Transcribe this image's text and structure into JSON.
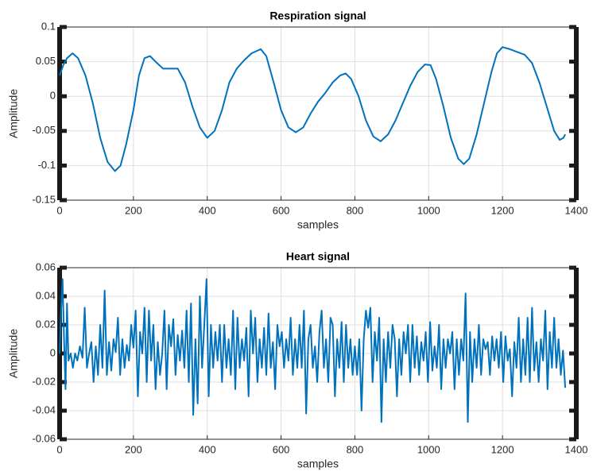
{
  "chart_data": [
    {
      "type": "line",
      "title": "Respiration signal",
      "xlabel": "samples",
      "ylabel": "Amplitude",
      "color": "#0072bd",
      "grid": true,
      "xlim": [
        0,
        1400
      ],
      "xticks": [
        0,
        200,
        400,
        600,
        800,
        1000,
        1200,
        1400
      ],
      "ylim": [
        -0.15,
        0.1
      ],
      "yticks": [
        -0.15,
        -0.1,
        -0.05,
        0,
        0.05,
        0.1
      ],
      "x": [
        0,
        10,
        20,
        35,
        50,
        70,
        90,
        110,
        130,
        150,
        165,
        180,
        200,
        215,
        230,
        245,
        260,
        280,
        300,
        320,
        340,
        360,
        380,
        400,
        420,
        440,
        460,
        480,
        500,
        520,
        545,
        560,
        580,
        600,
        620,
        640,
        660,
        680,
        700,
        720,
        740,
        760,
        775,
        790,
        810,
        830,
        850,
        870,
        890,
        910,
        930,
        950,
        970,
        990,
        1005,
        1020,
        1040,
        1060,
        1080,
        1095,
        1110,
        1130,
        1150,
        1170,
        1185,
        1200,
        1220,
        1240,
        1260,
        1280,
        1300,
        1320,
        1340,
        1355,
        1365,
        1370
      ],
      "values": [
        0.03,
        0.045,
        0.055,
        0.062,
        0.055,
        0.03,
        -0.01,
        -0.06,
        -0.095,
        -0.108,
        -0.1,
        -0.07,
        -0.02,
        0.03,
        0.055,
        0.058,
        0.05,
        0.04,
        0.04,
        0.04,
        0.02,
        -0.015,
        -0.045,
        -0.06,
        -0.05,
        -0.02,
        0.02,
        0.04,
        0.052,
        0.062,
        0.068,
        0.058,
        0.02,
        -0.02,
        -0.045,
        -0.052,
        -0.045,
        -0.025,
        -0.008,
        0.005,
        0.02,
        0.03,
        0.033,
        0.025,
        0.0,
        -0.035,
        -0.058,
        -0.065,
        -0.055,
        -0.035,
        -0.01,
        0.015,
        0.035,
        0.046,
        0.045,
        0.025,
        -0.015,
        -0.06,
        -0.09,
        -0.098,
        -0.09,
        -0.055,
        -0.01,
        0.035,
        0.062,
        0.071,
        0.068,
        0.064,
        0.06,
        0.048,
        0.02,
        -0.015,
        -0.05,
        -0.063,
        -0.06,
        -0.055
      ]
    },
    {
      "type": "line",
      "title": "Heart signal",
      "xlabel": "samples",
      "ylabel": "Amplitude",
      "color": "#0072bd",
      "grid": true,
      "xlim": [
        0,
        1400
      ],
      "xticks": [
        0,
        200,
        400,
        600,
        800,
        1000,
        1200,
        1400
      ],
      "ylim": [
        -0.06,
        0.06
      ],
      "yticks": [
        -0.06,
        -0.04,
        -0.02,
        0,
        0.02,
        0.04,
        0.06
      ],
      "x": [
        0,
        4,
        8,
        12,
        16,
        20,
        24,
        30,
        36,
        42,
        48,
        55,
        62,
        68,
        74,
        80,
        86,
        92,
        98,
        104,
        110,
        116,
        122,
        128,
        134,
        140,
        146,
        152,
        158,
        164,
        170,
        176,
        182,
        188,
        194,
        200,
        206,
        212,
        218,
        224,
        230,
        236,
        242,
        248,
        254,
        260,
        266,
        272,
        278,
        284,
        290,
        296,
        302,
        308,
        314,
        320,
        326,
        332,
        338,
        344,
        350,
        356,
        362,
        368,
        374,
        380,
        386,
        392,
        398,
        404,
        410,
        416,
        422,
        428,
        434,
        440,
        446,
        452,
        458,
        464,
        470,
        476,
        482,
        488,
        494,
        500,
        506,
        512,
        518,
        524,
        530,
        536,
        542,
        548,
        554,
        560,
        566,
        572,
        578,
        584,
        590,
        596,
        602,
        608,
        614,
        620,
        626,
        632,
        638,
        644,
        650,
        656,
        662,
        668,
        674,
        680,
        686,
        692,
        698,
        704,
        710,
        716,
        722,
        728,
        734,
        740,
        746,
        752,
        758,
        764,
        770,
        776,
        782,
        788,
        794,
        800,
        806,
        812,
        818,
        824,
        830,
        836,
        842,
        848,
        854,
        860,
        866,
        872,
        878,
        884,
        890,
        896,
        902,
        908,
        914,
        920,
        926,
        932,
        938,
        944,
        950,
        956,
        962,
        968,
        974,
        980,
        986,
        992,
        998,
        1004,
        1010,
        1016,
        1022,
        1028,
        1034,
        1040,
        1046,
        1052,
        1058,
        1064,
        1070,
        1076,
        1082,
        1088,
        1094,
        1100,
        1106,
        1112,
        1118,
        1124,
        1130,
        1136,
        1142,
        1148,
        1154,
        1160,
        1166,
        1172,
        1178,
        1184,
        1190,
        1196,
        1202,
        1208,
        1214,
        1220,
        1226,
        1232,
        1238,
        1244,
        1250,
        1256,
        1262,
        1268,
        1274,
        1280,
        1286,
        1292,
        1298,
        1304,
        1310,
        1316,
        1322,
        1328,
        1334,
        1340,
        1346,
        1352,
        1358,
        1364,
        1370
      ],
      "values": [
        0,
        0.03,
        0.052,
        0.01,
        -0.025,
        0.035,
        -0.005,
        0,
        -0.01,
        0,
        -0.005,
        0.005,
        -0.003,
        0.032,
        -0.01,
        0,
        0.008,
        -0.02,
        0.005,
        -0.015,
        0.02,
        -0.01,
        0.044,
        -0.015,
        0.008,
        -0.012,
        0.01,
        0.001,
        0.025,
        -0.015,
        0.01,
        -0.01,
        0.006,
        -0.005,
        0.02,
        0.004,
        0.03,
        -0.03,
        0.015,
        0,
        0.032,
        -0.02,
        0.03,
        -0.005,
        0.02,
        -0.025,
        0.008,
        -0.015,
        0,
        0.03,
        -0.025,
        0.02,
        0.005,
        0.024,
        -0.015,
        0.013,
        -0.005,
        0.016,
        -0.01,
        0.03,
        -0.02,
        0.035,
        -0.043,
        0.01,
        -0.035,
        0.04,
        -0.01,
        0.02,
        0.052,
        -0.03,
        0.02,
        -0.01,
        0.015,
        -0.005,
        0.02,
        -0.02,
        0.02,
        -0.01,
        0.01,
        -0.015,
        0.03,
        -0.025,
        0.025,
        -0.01,
        0.01,
        -0.005,
        0.018,
        -0.03,
        0.03,
        0,
        0.025,
        -0.02,
        0.01,
        -0.01,
        0.018,
        -0.015,
        0.028,
        -0.01,
        0.008,
        -0.025,
        0.02,
        0.005,
        0.015,
        -0.01,
        0.01,
        -0.005,
        0.025,
        -0.015,
        0.01,
        -0.01,
        0.02,
        -0.01,
        0.03,
        -0.042,
        0.01,
        0.02,
        -0.01,
        0.005,
        -0.02,
        0.015,
        0.03,
        -0.01,
        0.01,
        -0.02,
        0.025,
        0.02,
        -0.03,
        0.01,
        -0.01,
        0.022,
        -0.02,
        0.02,
        -0.01,
        0.01,
        -0.015,
        0.005,
        -0.015,
        0.01,
        -0.04,
        0.01,
        0.03,
        0.018,
        0.032,
        -0.02,
        0.015,
        -0.005,
        0.025,
        -0.048,
        0.01,
        -0.02,
        0.015,
        -0.01,
        0.02,
        0.01,
        -0.03,
        0.01,
        -0.015,
        0.015,
        0,
        0.02,
        -0.02,
        0.02,
        -0.01,
        0.012,
        -0.015,
        0.008,
        -0.005,
        0.015,
        -0.02,
        0.022,
        -0.012,
        0.005,
        -0.01,
        0.02,
        -0.025,
        0.01,
        -0.01,
        0.01,
        0,
        0.015,
        -0.025,
        0.01,
        -0.015,
        0.01,
        -0.005,
        0.042,
        -0.048,
        0.015,
        -0.02,
        0.01,
        -0.01,
        0.02,
        -0.015,
        0.01,
        0.003,
        0.008,
        -0.015,
        0.012,
        -0.005,
        0.01,
        -0.01,
        0.015,
        -0.02,
        0.012,
        -0.005,
        0.003,
        -0.03,
        0.008,
        -0.01,
        0.025,
        -0.02,
        0.01,
        -0.015,
        0.025,
        -0.02,
        0.032,
        -0.012,
        0.008,
        -0.02,
        0.01,
        -0.005,
        0.03,
        -0.025,
        0.015,
        -0.01,
        0.025,
        -0.01,
        0.01,
        -0.015,
        0.002,
        -0.024
      ]
    }
  ]
}
